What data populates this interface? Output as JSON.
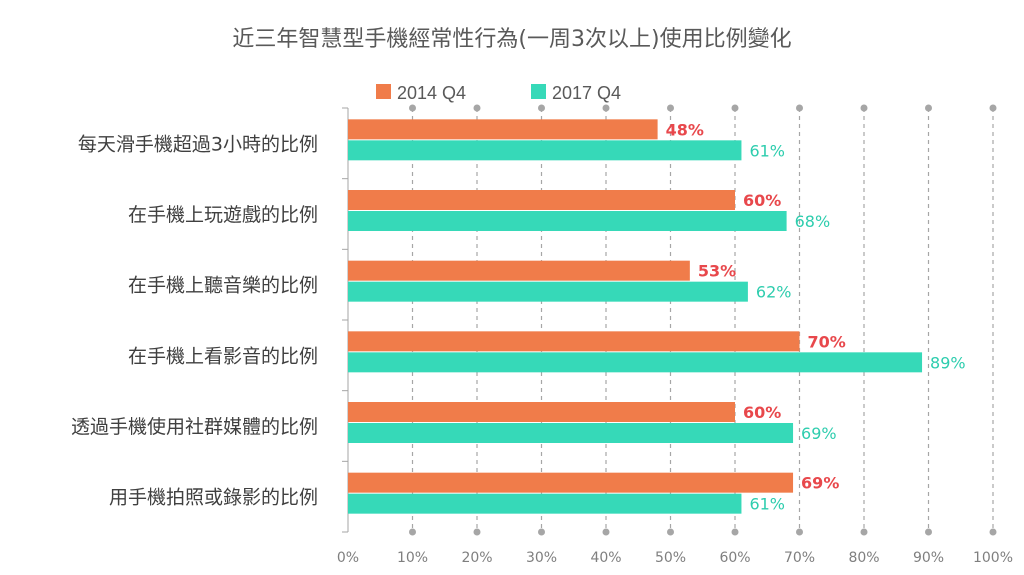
{
  "chart_data": {
    "type": "bar",
    "orientation": "horizontal",
    "title": "近三年智慧型手機經常性行為(一周3次以上)使用比例變化",
    "categories": [
      "每天滑手機超過3小時的比例",
      "在手機上玩遊戲的比例",
      "在手機上聽音樂的比例",
      "在手機上看影音的比例",
      "透過手機使用社群媒體的比例",
      "用手機拍照或錄影的比例"
    ],
    "series": [
      {
        "name": "2014 Q4",
        "values": [
          48,
          60,
          53,
          70,
          60,
          69
        ],
        "value_labels": [
          "48%",
          "60%",
          "53%",
          "70%",
          "60%",
          "69%"
        ],
        "color": "#F07C4A",
        "label_color": "#E8484C"
      },
      {
        "name": "2017 Q4",
        "values": [
          61,
          68,
          62,
          89,
          69,
          61
        ],
        "value_labels": [
          "61%",
          "68%",
          "62%",
          "89%",
          "69%",
          "61%"
        ],
        "color": "#36D9B8",
        "label_color": "#2ECDAE"
      }
    ],
    "xlim": [
      0,
      100
    ],
    "x_ticks": [
      "0%",
      "10%",
      "20%",
      "30%",
      "40%",
      "50%",
      "60%",
      "70%",
      "80%",
      "90%",
      "100%"
    ],
    "gridlines": "vertical dashed gray",
    "legend_position": "top"
  }
}
